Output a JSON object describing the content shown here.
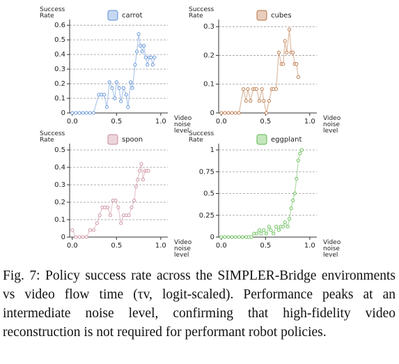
{
  "chart_data": [
    {
      "type": "line",
      "xlabel": "Video noise level",
      "ylabel": "Success Rate",
      "x": [
        0,
        0.04,
        0.08,
        0.12,
        0.16,
        0.2,
        0.24,
        0.3,
        0.33,
        0.36,
        0.39,
        0.42,
        0.45,
        0.48,
        0.5,
        0.53,
        0.55,
        0.58,
        0.61,
        0.63,
        0.66,
        0.68,
        0.71,
        0.73,
        0.75,
        0.77,
        0.79,
        0.81,
        0.83,
        0.85,
        0.87,
        0.89,
        0.91,
        0.93
      ],
      "series": [
        {
          "name": "carrot",
          "color": "#5b8fd6",
          "values": [
            0,
            0,
            0,
            0,
            0,
            0,
            0,
            0.125,
            0.125,
            0.125,
            0.04,
            0.21,
            0.17,
            0.1,
            0.21,
            0.17,
            0.08,
            0.17,
            0.125,
            0.04,
            0.21,
            0.17,
            0.33,
            0.42,
            0.54,
            0.46,
            0.42,
            0.46,
            0.38,
            0.33,
            0.38,
            0.38,
            0.33,
            0.38
          ]
        }
      ],
      "xlim": [
        -0.03,
        1.08
      ],
      "ylim": [
        0,
        0.62
      ],
      "xticks": [
        {
          "value": 0,
          "label": "0.0"
        },
        0.5,
        {
          "value": 1,
          "label": "1.0"
        }
      ],
      "yticks": [
        0,
        0.1,
        0.2,
        0.3,
        0.4,
        0.5,
        0.6
      ],
      "grid": true
    },
    {
      "type": "line",
      "xlabel": "Video noise level",
      "ylabel": "Success Rate",
      "x": [
        0,
        0.04,
        0.08,
        0.12,
        0.16,
        0.2,
        0.25,
        0.28,
        0.3,
        0.33,
        0.36,
        0.38,
        0.4,
        0.43,
        0.46,
        0.48,
        0.51,
        0.54,
        0.57,
        0.59,
        0.62,
        0.65,
        0.68,
        0.7,
        0.72,
        0.74,
        0.77,
        0.79,
        0.81,
        0.83,
        0.85,
        0.87
      ],
      "series": [
        {
          "name": "cubes",
          "color": "#b8703f",
          "values": [
            0,
            0,
            0,
            0,
            0,
            0,
            0.083,
            0.042,
            0.083,
            0.042,
            0.083,
            0.083,
            0.083,
            0.042,
            0.083,
            0.042,
            0,
            0.042,
            0.083,
            0.083,
            0.083,
            0.21,
            0.17,
            0.17,
            0.25,
            0.21,
            0.29,
            0.21,
            0.21,
            0.17,
            0.17,
            0.125
          ]
        }
      ],
      "xlim": [
        -0.03,
        1.08
      ],
      "ylim": [
        0,
        0.315
      ],
      "xticks": [
        {
          "value": 0,
          "label": "0.0"
        },
        0.5,
        {
          "value": 1,
          "label": "1.0"
        }
      ],
      "yticks": [
        0,
        0.1,
        0.2,
        0.3
      ],
      "grid": true
    },
    {
      "type": "line",
      "xlabel": "Video noise level",
      "ylabel": "Success Rate",
      "x": [
        0,
        0.04,
        0.08,
        0.12,
        0.16,
        0.2,
        0.24,
        0.28,
        0.31,
        0.34,
        0.37,
        0.4,
        0.43,
        0.46,
        0.49,
        0.52,
        0.55,
        0.58,
        0.61,
        0.64,
        0.67,
        0.7,
        0.72,
        0.74,
        0.76,
        0.78,
        0.8,
        0.82,
        0.84,
        0.86
      ],
      "series": [
        {
          "name": "spoon",
          "color": "#c98a9a",
          "values": [
            0.04,
            0,
            0,
            0,
            0,
            0.04,
            0.04,
            0.08,
            0.125,
            0.17,
            0.17,
            0.17,
            0.125,
            0.21,
            0.21,
            0.17,
            0.08,
            0.125,
            0.125,
            0.125,
            0.17,
            0.21,
            0.29,
            0.33,
            0.38,
            0.42,
            0.33,
            0.38,
            0.38,
            0.38
          ]
        }
      ],
      "xlim": [
        -0.03,
        1.08
      ],
      "ylim": [
        0,
        0.52
      ],
      "xticks": [
        {
          "value": 0,
          "label": "0.0"
        },
        0.5,
        {
          "value": 1,
          "label": "1.0"
        }
      ],
      "yticks": [
        0,
        0.1,
        0.2,
        0.3,
        0.4,
        0.5
      ],
      "grid": true
    },
    {
      "type": "line",
      "xlabel": "Video noise level",
      "ylabel": "Success Rate",
      "x": [
        0,
        0.04,
        0.08,
        0.12,
        0.16,
        0.2,
        0.24,
        0.28,
        0.31,
        0.34,
        0.37,
        0.4,
        0.43,
        0.45,
        0.48,
        0.51,
        0.54,
        0.56,
        0.59,
        0.62,
        0.65,
        0.67,
        0.7,
        0.72,
        0.75,
        0.77,
        0.79,
        0.81,
        0.83,
        0.85,
        0.87,
        0.89,
        0.91
      ],
      "series": [
        {
          "name": "eggplant",
          "color": "#5cb84a",
          "values": [
            0,
            0,
            0,
            0,
            0,
            0,
            0,
            0,
            0,
            0,
            0.04,
            0.04,
            0.08,
            0.04,
            0.08,
            0.04,
            0.12,
            0.08,
            0.04,
            0.12,
            0.08,
            0.12,
            0.12,
            0.17,
            0.12,
            0.21,
            0.33,
            0.42,
            0.5,
            0.67,
            0.88,
            0.96,
            1.0
          ]
        }
      ],
      "xlim": [
        -0.03,
        1.08
      ],
      "ylim": [
        0,
        1.04
      ],
      "xticks": [
        {
          "value": 0,
          "label": "0.0"
        },
        0.5,
        {
          "value": 1,
          "label": "1.0"
        }
      ],
      "yticks": [
        0,
        0.25,
        0.5,
        0.75,
        1
      ],
      "grid": true
    }
  ],
  "caption": "Fig. 7: Policy success rate across the SIMPLER-Bridge environments vs video flow time (τv, logit-scaled). Performance peaks at an intermediate noise level, confirming that high-fidelity video reconstruction is not required for performant robot policies."
}
